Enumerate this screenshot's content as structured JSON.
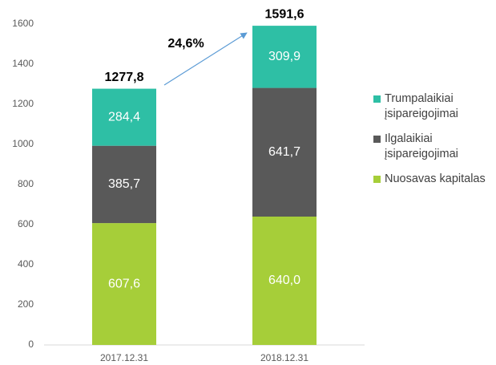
{
  "chart_data": {
    "type": "stacked_bar",
    "categories": [
      "2017.12.31",
      "2018.12.31"
    ],
    "series": [
      {
        "name": "Nuosavas kapitalas",
        "color": "#a6ce39",
        "values": [
          607.6,
          640.0
        ],
        "value_labels": [
          "607,6",
          "640,0"
        ]
      },
      {
        "name": "Ilgalaikiai įsipareigojimai",
        "color": "#595959",
        "values": [
          385.7,
          641.7
        ],
        "value_labels": [
          "385,7",
          "641,7"
        ]
      },
      {
        "name": "Trumpalaikiai įsipareigojimai",
        "color": "#2ebfa5",
        "values": [
          284.4,
          309.9
        ],
        "value_labels": [
          "284,4",
          "309,9"
        ]
      }
    ],
    "totals": [
      1277.8,
      1591.6
    ],
    "total_labels": [
      "1277,8",
      "1591,6"
    ],
    "annotation": "24,6%",
    "ylim": [
      0,
      1600
    ],
    "yticks": [
      0,
      200,
      400,
      600,
      800,
      1000,
      1200,
      1400,
      1600
    ],
    "legend": "right"
  }
}
